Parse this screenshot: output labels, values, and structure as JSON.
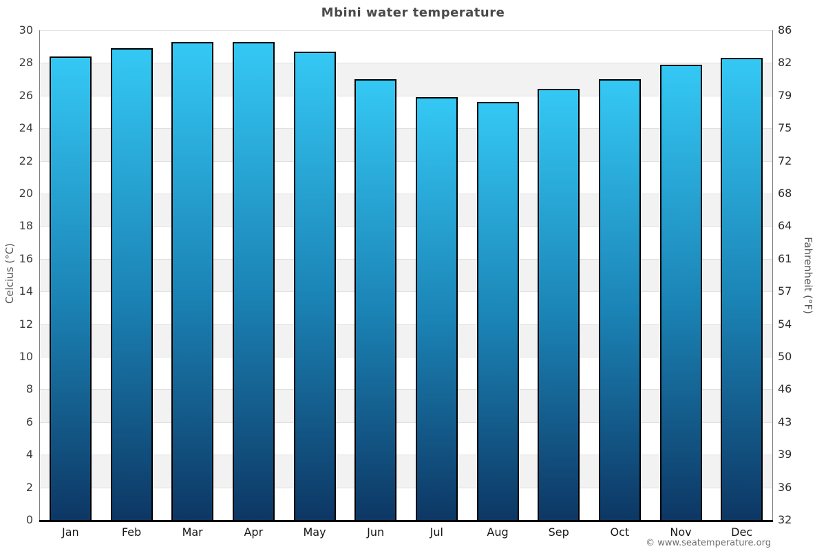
{
  "title": "Mbini water temperature",
  "copyright": "© www.seatemperature.org",
  "colors": {
    "bar_gradient_top": "#35c8f4",
    "bar_gradient_mid": "#1b84b6",
    "bar_gradient_bottom": "#0d3764",
    "bar_border": "#000000",
    "band_fill": "#f2f2f2",
    "gridline": "#e0e0e0",
    "side_axis": "#7d7d7d",
    "bottom_axis": "#000000",
    "title_text": "#4a4a4a",
    "tick_text": "#3d3d3d",
    "copyright_text": "#6e6e6e"
  },
  "chart_data": {
    "type": "bar",
    "title": "Mbini water temperature",
    "categories": [
      "Jan",
      "Feb",
      "Mar",
      "Apr",
      "May",
      "Jun",
      "Jul",
      "Aug",
      "Sep",
      "Oct",
      "Nov",
      "Dec"
    ],
    "values": [
      28.4,
      28.9,
      29.3,
      29.3,
      28.7,
      27.0,
      25.9,
      25.6,
      26.4,
      27.0,
      27.9,
      28.3
    ],
    "xlabel": "",
    "ylabel_left": "Celcius (°C)",
    "ylabel_right": "Fahrenheit (°F)",
    "ylim": [
      0,
      30
    ],
    "y_left_ticks": [
      0,
      2,
      4,
      6,
      8,
      10,
      12,
      14,
      16,
      18,
      20,
      22,
      24,
      26,
      28,
      30
    ],
    "y_right_ticks": [
      32,
      36,
      39,
      43,
      46,
      50,
      54,
      57,
      61,
      64,
      68,
      72,
      75,
      79,
      82,
      86
    ],
    "grid": "horizontal-banded-every-2C",
    "legend": "none"
  }
}
